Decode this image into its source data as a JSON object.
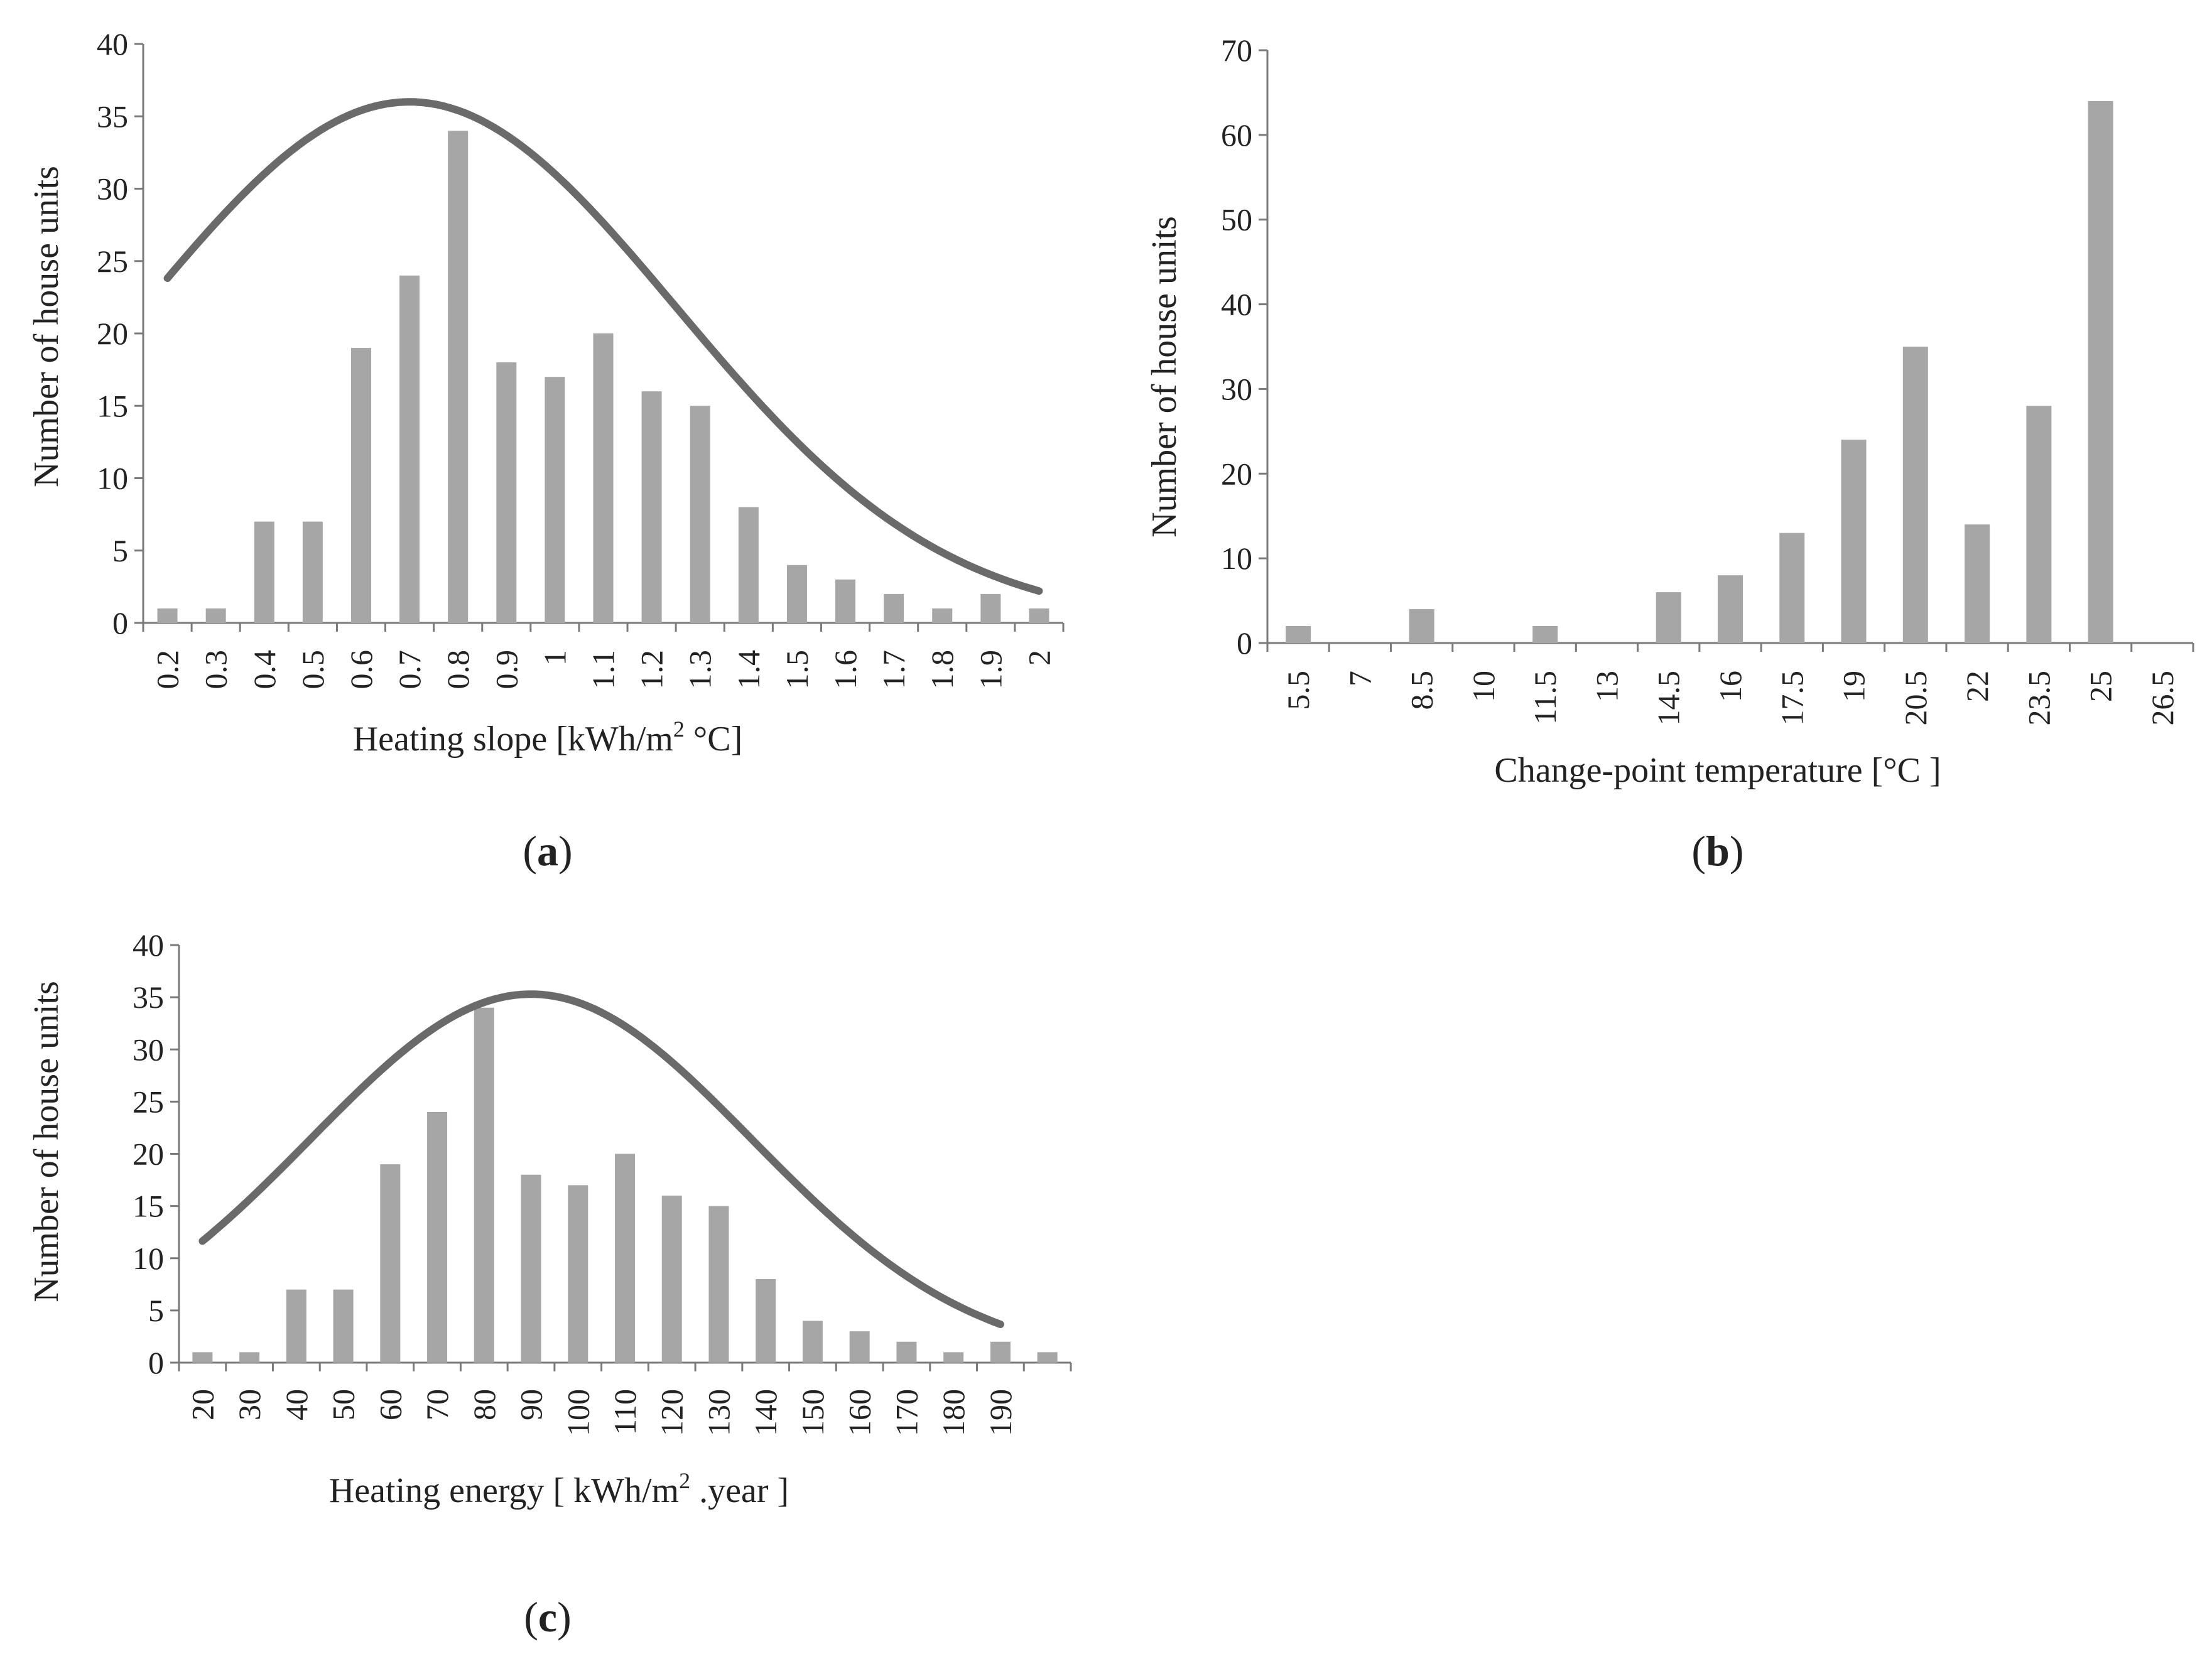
{
  "colors": {
    "bar": "#a6a6a6",
    "curve": "#6a6a6a",
    "axis": "#7a7a7a",
    "text": "#222222"
  },
  "chart_data": [
    {
      "id": "a",
      "type": "bar",
      "panel_prefix": "(",
      "panel_letter": "a",
      "panel_suffix": ")",
      "categories": [
        "0.2",
        "0.3",
        "0.4",
        "0.5",
        "0.6",
        "0.7",
        "0.8",
        "0.9",
        "1",
        "1.1",
        "1.2",
        "1.3",
        "1.4",
        "1.5",
        "1.6",
        "1.7",
        "1.8",
        "1.9",
        "2"
      ],
      "values": [
        1,
        1,
        7,
        7,
        19,
        24,
        34,
        18,
        17,
        20,
        16,
        15,
        8,
        4,
        3,
        2,
        1,
        2,
        1
      ],
      "ylabel": "Number of house units",
      "xlabel_main": "Heating slope [kWh/m",
      "xlabel_sup": "2",
      "xlabel_tail": " °C]",
      "ylim": [
        0,
        40
      ],
      "yticks": [
        0,
        5,
        10,
        15,
        20,
        25,
        30,
        35,
        40
      ],
      "curve": {
        "type": "normal-fit",
        "peak_x": 0.7,
        "peak_y": 36,
        "sigma": 0.55,
        "x_range": [
          0.2,
          2.0
        ]
      }
    },
    {
      "id": "b",
      "type": "bar",
      "panel_prefix": "(",
      "panel_letter": "b",
      "panel_suffix": ")",
      "categories": [
        "5.5",
        "7",
        "8.5",
        "10",
        "11.5",
        "13",
        "14.5",
        "16",
        "17.5",
        "19",
        "20.5",
        "22",
        "23.5",
        "25",
        "26.5"
      ],
      "values": [
        2,
        0,
        4,
        0,
        2,
        0,
        6,
        8,
        13,
        24,
        35,
        14,
        28,
        64,
        0
      ],
      "ylabel": "Number of house units",
      "xlabel_main": "Change-point temperature [°C ]",
      "ylim": [
        0,
        70
      ],
      "yticks": [
        0,
        10,
        20,
        30,
        40,
        50,
        60,
        70
      ]
    },
    {
      "id": "c",
      "type": "bar",
      "panel_prefix": "(",
      "panel_letter": "c",
      "panel_suffix": ")",
      "categories": [
        "20",
        "30",
        "40",
        "50",
        "60",
        "70",
        "80",
        "90",
        "100",
        "110",
        "120",
        "130",
        "140",
        "150",
        "160",
        "170",
        "180",
        "190",
        ""
      ],
      "values": [
        1,
        1,
        7,
        7,
        19,
        24,
        34,
        18,
        17,
        20,
        16,
        15,
        8,
        4,
        3,
        2,
        1,
        2,
        1
      ],
      "ylabel": "Number of house units",
      "xlabel_main": "Heating energy [ kWh/m",
      "xlabel_sup": "2",
      "xlabel_tail": " .year ]",
      "ylim": [
        0,
        40
      ],
      "yticks": [
        0,
        5,
        10,
        15,
        20,
        25,
        30,
        35,
        40
      ],
      "curve": {
        "type": "normal-fit",
        "peak_x": 90,
        "peak_y": 35.3,
        "sigma": 47,
        "x_range": [
          20,
          190
        ]
      }
    }
  ]
}
